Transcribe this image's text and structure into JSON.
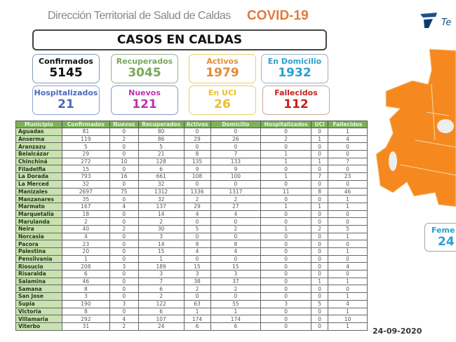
{
  "header": {
    "title": "Dirección Territorial de Salud de Caldas",
    "covid": "COVID-19",
    "banner": "CASOS EN CALDAS",
    "logo_text": "Te"
  },
  "cards": [
    {
      "label": "Confirmados",
      "value": "5145",
      "color": "#111111",
      "border": "#8898b8"
    },
    {
      "label": "Recuperados",
      "value": "3045",
      "color": "#7aa85a",
      "border": "#9ab090"
    },
    {
      "label": "Activos",
      "value": "1979",
      "color": "#e08a3a",
      "border": "#e8d070"
    },
    {
      "label": "En Domicilio",
      "value": "1932",
      "color": "#2aa0d0",
      "border": "#9ab0c8"
    },
    {
      "label": "Hospitalizados",
      "value": "21",
      "color": "#4a6ab8",
      "border": "#8aa0c8"
    },
    {
      "label": "Nuevos",
      "value": "121",
      "color": "#c030b0",
      "border": "#8898b8"
    },
    {
      "label": "En UCI",
      "value": "26",
      "color": "#e8c030",
      "border": "#e8d070"
    },
    {
      "label": "Fallecidos",
      "value": "112",
      "color": "#c82020",
      "border": "#c8a890"
    }
  ],
  "table": {
    "headers": [
      "Municipio",
      "Confirmados",
      "Nuevos",
      "Recuperados",
      "Activos",
      "Domicilio",
      "Hospitalizados",
      "UCI",
      "Fallecidos"
    ],
    "rows": [
      [
        "Aguadas",
        "81",
        "0",
        "80",
        "0",
        "0",
        "0",
        "0",
        "1"
      ],
      [
        "Anserma",
        "119",
        "2",
        "86",
        "29",
        "26",
        "2",
        "1",
        "4"
      ],
      [
        "Aranzazu",
        "5",
        "0",
        "5",
        "0",
        "0",
        "0",
        "0",
        "0"
      ],
      [
        "Belalcázar",
        "29",
        "0",
        "21",
        "8",
        "7",
        "1",
        "0",
        "0"
      ],
      [
        "Chinchiná",
        "272",
        "10",
        "128",
        "135",
        "133",
        "1",
        "1",
        "7"
      ],
      [
        "Filadelfia",
        "15",
        "0",
        "6",
        "9",
        "9",
        "0",
        "0",
        "0"
      ],
      [
        "La Dorada",
        "793",
        "16",
        "661",
        "108",
        "100",
        "1",
        "7",
        "23"
      ],
      [
        "La Merced",
        "32",
        "0",
        "32",
        "0",
        "0",
        "0",
        "0",
        "0"
      ],
      [
        "Manizales",
        "2697",
        "75",
        "1312",
        "1336",
        "1317",
        "11",
        "8",
        "46"
      ],
      [
        "Manzanares",
        "35",
        "0",
        "32",
        "2",
        "2",
        "0",
        "0",
        "1"
      ],
      [
        "Marmato",
        "167",
        "4",
        "137",
        "29",
        "27",
        "1",
        "1",
        "1"
      ],
      [
        "Marquetalia",
        "18",
        "0",
        "14",
        "4",
        "4",
        "0",
        "0",
        "0"
      ],
      [
        "Marulanda",
        "2",
        "0",
        "2",
        "0",
        "0",
        "0",
        "0",
        "0"
      ],
      [
        "Neira",
        "40",
        "2",
        "30",
        "5",
        "2",
        "1",
        "2",
        "5"
      ],
      [
        "Norcasia",
        "4",
        "0",
        "3",
        "0",
        "0",
        "0",
        "0",
        "1"
      ],
      [
        "Pacora",
        "23",
        "0",
        "14",
        "8",
        "8",
        "0",
        "0",
        "0"
      ],
      [
        "Palestina",
        "20",
        "0",
        "15",
        "4",
        "4",
        "0",
        "0",
        "1"
      ],
      [
        "Pensilvania",
        "1",
        "0",
        "1",
        "0",
        "0",
        "0",
        "0",
        "0"
      ],
      [
        "Riosucio",
        "208",
        "3",
        "189",
        "15",
        "15",
        "0",
        "0",
        "4"
      ],
      [
        "Risaralda",
        "6",
        "0",
        "3",
        "3",
        "3",
        "0",
        "0",
        "0"
      ],
      [
        "Salamina",
        "46",
        "0",
        "7",
        "38",
        "37",
        "0",
        "1",
        "1"
      ],
      [
        "Samana",
        "8",
        "0",
        "6",
        "2",
        "2",
        "0",
        "0",
        "0"
      ],
      [
        "San Jose",
        "3",
        "0",
        "2",
        "0",
        "0",
        "0",
        "0",
        "1"
      ],
      [
        "Supia",
        "190",
        "3",
        "122",
        "63",
        "55",
        "3",
        "5",
        "4"
      ],
      [
        "Victoria",
        "8",
        "0",
        "6",
        "1",
        "1",
        "0",
        "0",
        "1"
      ],
      [
        "Villamaria",
        "292",
        "4",
        "107",
        "174",
        "174",
        "0",
        "0",
        "10"
      ],
      [
        "Viterbo",
        "31",
        "2",
        "24",
        "6",
        "6",
        "0",
        "0",
        "1"
      ]
    ]
  },
  "side": {
    "feme_label": "Feme",
    "feme_value": "24",
    "date": "24-09-2020",
    "map_color": "#f5891f"
  }
}
